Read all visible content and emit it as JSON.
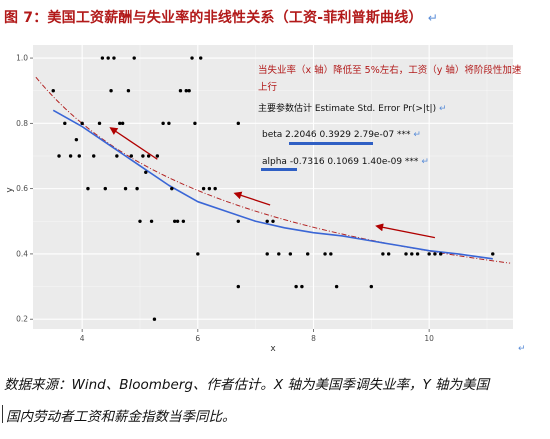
{
  "figure": {
    "title": "图 7：美国工资薪酬与失业率的非线性关系（工资-菲利普斯曲线）",
    "return_mark": "↵"
  },
  "annotations": {
    "red_note": "当失业率（x 轴）降低至 5%左右，工资（y 轴）将阶段性加速上行",
    "params_header": "主要参数估计 Estimate Std. Error Pr(>|t|)",
    "beta_label": "beta",
    "beta_values": "2.2046  0.3929",
    "beta_p": "2.79e-07 ***",
    "alpha_label": "alpha",
    "alpha_values": "-0.7316 0.1069",
    "alpha_p": "1.40e-09 ***"
  },
  "source": {
    "line1": "数据来源：Wind、Bloomberg、作者估计。X 轴为美国季调失业率，Y 轴为美国",
    "line2": "国内劳动者工资和薪金指数当季同比。"
  },
  "colors": {
    "title": "#b21a1a",
    "panel_bg": "#ebebeb",
    "grid_major": "#ffffff",
    "points": "#000000",
    "fit_line": "#3a66d6",
    "dashed_fit": "#b22222",
    "arrows": "#b00000"
  },
  "chart_data": {
    "type": "scatter",
    "xlabel": "x",
    "ylabel": "y",
    "xlim": [
      3.15,
      11.45
    ],
    "ylim": [
      0.17,
      1.04
    ],
    "xticks": [
      4,
      6,
      8,
      10
    ],
    "yticks": [
      0.2,
      0.4,
      0.6,
      0.8,
      1.0
    ],
    "grid": true,
    "points": [
      [
        3.5,
        0.9
      ],
      [
        3.6,
        0.7
      ],
      [
        3.7,
        0.8
      ],
      [
        3.8,
        0.7
      ],
      [
        3.9,
        0.75
      ],
      [
        3.95,
        0.7
      ],
      [
        4.0,
        0.8
      ],
      [
        4.1,
        0.6
      ],
      [
        4.2,
        0.7
      ],
      [
        4.3,
        0.8
      ],
      [
        4.35,
        1.0
      ],
      [
        4.4,
        0.6
      ],
      [
        4.45,
        1.0
      ],
      [
        4.5,
        0.9
      ],
      [
        4.55,
        1.0
      ],
      [
        4.6,
        0.7
      ],
      [
        4.65,
        0.8
      ],
      [
        4.7,
        0.8
      ],
      [
        4.75,
        0.6
      ],
      [
        4.8,
        0.9
      ],
      [
        4.85,
        0.7
      ],
      [
        4.9,
        1.0
      ],
      [
        4.95,
        0.6
      ],
      [
        5.0,
        0.5
      ],
      [
        5.05,
        0.7
      ],
      [
        5.1,
        0.65
      ],
      [
        5.15,
        0.7
      ],
      [
        5.2,
        0.5
      ],
      [
        5.25,
        0.2
      ],
      [
        5.3,
        0.7
      ],
      [
        5.4,
        0.8
      ],
      [
        5.5,
        0.8
      ],
      [
        5.55,
        0.6
      ],
      [
        5.6,
        0.5
      ],
      [
        5.65,
        0.5
      ],
      [
        5.7,
        0.9
      ],
      [
        5.75,
        0.5
      ],
      [
        5.8,
        0.9
      ],
      [
        5.85,
        0.9
      ],
      [
        5.9,
        1.0
      ],
      [
        5.95,
        0.8
      ],
      [
        6.0,
        0.4
      ],
      [
        6.05,
        1.0
      ],
      [
        6.1,
        0.6
      ],
      [
        6.2,
        0.6
      ],
      [
        6.3,
        0.6
      ],
      [
        6.7,
        0.8
      ],
      [
        6.7,
        0.5
      ],
      [
        6.7,
        0.3
      ],
      [
        7.2,
        0.5
      ],
      [
        7.2,
        0.4
      ],
      [
        7.3,
        0.5
      ],
      [
        7.4,
        0.4
      ],
      [
        7.6,
        0.4
      ],
      [
        7.7,
        0.3
      ],
      [
        7.8,
        0.3
      ],
      [
        7.9,
        0.4
      ],
      [
        8.2,
        0.4
      ],
      [
        8.3,
        0.4
      ],
      [
        8.4,
        0.3
      ],
      [
        9.0,
        0.3
      ],
      [
        9.2,
        0.4
      ],
      [
        9.3,
        0.4
      ],
      [
        9.6,
        0.4
      ],
      [
        9.7,
        0.4
      ],
      [
        9.8,
        0.4
      ],
      [
        10.0,
        0.4
      ],
      [
        10.1,
        0.4
      ],
      [
        10.2,
        0.4
      ],
      [
        11.1,
        0.4
      ]
    ],
    "fit": {
      "name": "",
      "form": "y = beta * x^alpha",
      "beta": 2.2046,
      "alpha": -0.7316,
      "x_range": [
        3.5,
        11.1
      ]
    },
    "loess": {
      "x": [
        3.5,
        4.0,
        4.5,
        5.0,
        5.5,
        6.0,
        6.5,
        7.0,
        7.5,
        8.0,
        8.5,
        9.0,
        9.5,
        10.0,
        10.5,
        11.1
      ],
      "y": [
        0.84,
        0.79,
        0.73,
        0.67,
        0.61,
        0.56,
        0.53,
        0.5,
        0.48,
        0.465,
        0.455,
        0.44,
        0.425,
        0.41,
        0.4,
        0.385
      ]
    },
    "arrows": [
      {
        "from": [
          7.25,
          0.55
        ],
        "to": [
          6.65,
          0.585
        ]
      },
      {
        "from": [
          5.3,
          0.69
        ],
        "to": [
          4.5,
          0.785
        ]
      },
      {
        "from": [
          10.1,
          0.45
        ],
        "to": [
          9.1,
          0.485
        ]
      }
    ]
  }
}
